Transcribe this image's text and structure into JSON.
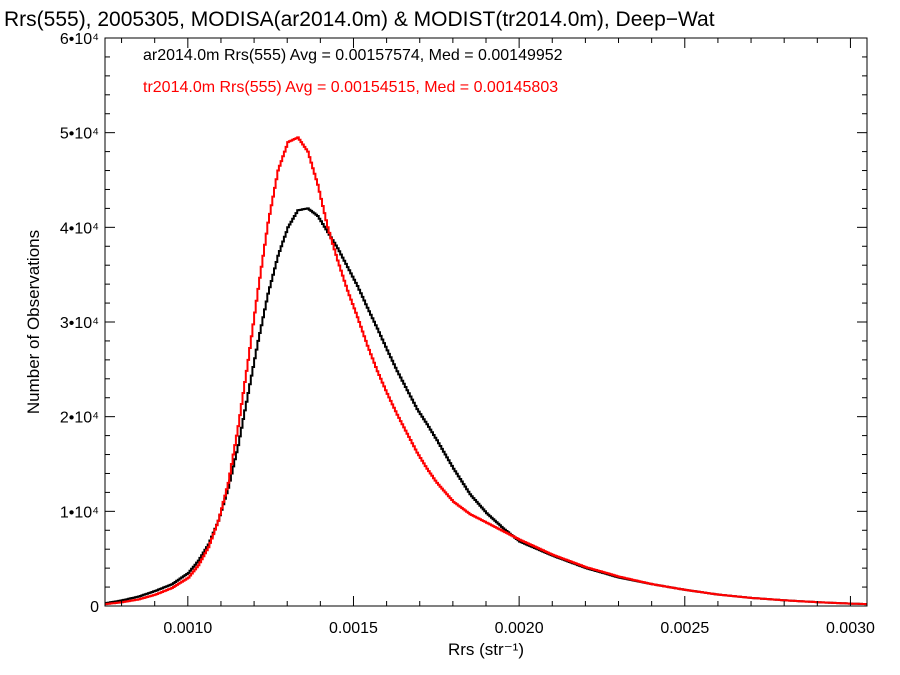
{
  "chart_data": {
    "type": "line",
    "title": "Rrs(555), 2005305, MODISA(ar2014.0m) & MODIST(tr2014.0m), Deep−Wat",
    "xlabel": "Rrs (str⁻¹)",
    "ylabel": "Number of Observations",
    "xlim": [
      0.00075,
      0.00305
    ],
    "ylim": [
      0,
      60000
    ],
    "x_ticks": [
      {
        "value": 0.001,
        "label": "0.0010"
      },
      {
        "value": 0.0015,
        "label": "0.0015"
      },
      {
        "value": 0.002,
        "label": "0.0020"
      },
      {
        "value": 0.0025,
        "label": "0.0025"
      },
      {
        "value": 0.003,
        "label": "0.0030"
      }
    ],
    "y_ticks": [
      {
        "value": 0,
        "label": "0"
      },
      {
        "value": 10000,
        "label": "1•10⁴"
      },
      {
        "value": 20000,
        "label": "2•10⁴"
      },
      {
        "value": 30000,
        "label": "3•10⁴"
      },
      {
        "value": 40000,
        "label": "4•10⁴"
      },
      {
        "value": 50000,
        "label": "5•10⁴"
      },
      {
        "value": 60000,
        "label": "6•10⁴"
      }
    ],
    "grid": false,
    "legend": "top-left",
    "series": [
      {
        "name": "ar2014.0m Rrs(555) Avg = 0.00157574, Med = 0.00149952",
        "color": "#000000",
        "x": [
          0.00075,
          0.0008,
          0.00085,
          0.0009,
          0.00095,
          0.001,
          0.00103,
          0.00106,
          0.00109,
          0.00112,
          0.00115,
          0.00118,
          0.00121,
          0.00124,
          0.00127,
          0.0013,
          0.00133,
          0.00136,
          0.00139,
          0.00142,
          0.00145,
          0.00148,
          0.00151,
          0.00154,
          0.00157,
          0.0016,
          0.00163,
          0.00166,
          0.00169,
          0.00172,
          0.00175,
          0.0018,
          0.00185,
          0.0019,
          0.00195,
          0.002,
          0.0021,
          0.0022,
          0.0023,
          0.0024,
          0.0025,
          0.0026,
          0.0027,
          0.0028,
          0.0029,
          0.003,
          0.00305
        ],
        "values": [
          300,
          600,
          1000,
          1600,
          2300,
          3500,
          4800,
          6500,
          9000,
          12500,
          17000,
          22500,
          28000,
          33000,
          37000,
          40000,
          41800,
          42000,
          41200,
          39500,
          37800,
          35800,
          33800,
          31500,
          29300,
          27000,
          24800,
          22800,
          20800,
          19200,
          17500,
          14500,
          11800,
          9800,
          8200,
          6800,
          5300,
          4000,
          3000,
          2300,
          1700,
          1200,
          850,
          600,
          400,
          250,
          200
        ]
      },
      {
        "name": "tr2014.0m Rrs(555) Avg = 0.00154515, Med = 0.00145803",
        "color": "#ff0000",
        "x": [
          0.00075,
          0.0008,
          0.00085,
          0.0009,
          0.00095,
          0.001,
          0.00103,
          0.00106,
          0.00109,
          0.00112,
          0.00115,
          0.00118,
          0.00121,
          0.00124,
          0.00127,
          0.0013,
          0.00133,
          0.00136,
          0.00139,
          0.00142,
          0.00145,
          0.00148,
          0.00151,
          0.00154,
          0.00157,
          0.0016,
          0.00163,
          0.00166,
          0.00169,
          0.00172,
          0.00175,
          0.0018,
          0.00185,
          0.0019,
          0.00195,
          0.002,
          0.0021,
          0.0022,
          0.0023,
          0.0024,
          0.0025,
          0.0026,
          0.0027,
          0.0028,
          0.0029,
          0.003,
          0.00305
        ],
        "values": [
          200,
          400,
          700,
          1200,
          1900,
          3000,
          4300,
          6200,
          9000,
          13000,
          19000,
          26000,
          33500,
          40500,
          46000,
          49000,
          49500,
          48000,
          44500,
          40000,
          36500,
          33300,
          30500,
          27500,
          24800,
          22400,
          20200,
          18200,
          16200,
          14500,
          13000,
          11000,
          9700,
          8800,
          7900,
          7000,
          5400,
          4100,
          3100,
          2300,
          1700,
          1200,
          850,
          600,
          400,
          250,
          200
        ]
      }
    ]
  }
}
